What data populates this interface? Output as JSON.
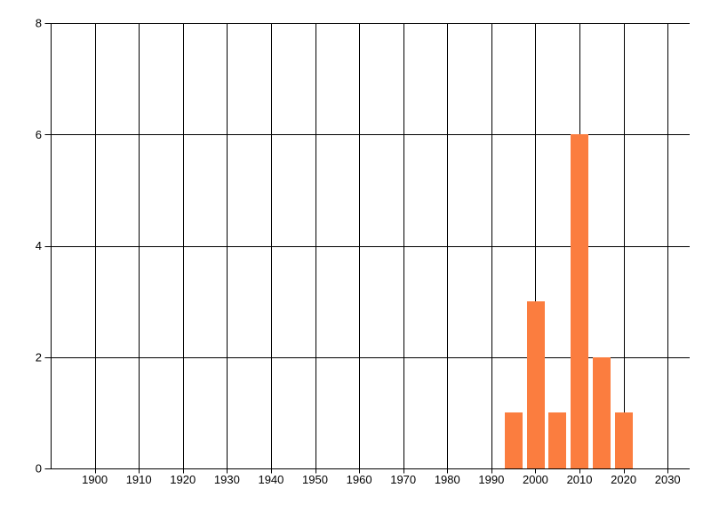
{
  "chart_data": {
    "type": "bar",
    "title": "",
    "xlabel": "",
    "ylabel": "",
    "x_centers": [
      1995,
      2000,
      2005,
      2010,
      2015,
      2020
    ],
    "values": [
      1,
      3,
      1,
      6,
      2,
      1
    ],
    "bar_width_years": 4,
    "xlim": [
      1890,
      2035
    ],
    "ylim": [
      0,
      8
    ],
    "x_ticks": [
      1900,
      1910,
      1920,
      1930,
      1940,
      1950,
      1960,
      1970,
      1980,
      1990,
      2000,
      2010,
      2020,
      2030
    ],
    "x_tick_labels": [
      "1900",
      "1910",
      "1920",
      "1930",
      "1940",
      "1950",
      "1960",
      "1970",
      "1980",
      "1990",
      "2000",
      "2010",
      "2020",
      "2030"
    ],
    "y_ticks": [
      0,
      2,
      4,
      6,
      8
    ],
    "y_tick_labels": [
      "0",
      "2",
      "4",
      "6",
      "8"
    ],
    "grid": "on",
    "legend": "none",
    "colors": {
      "bar": "#fb7d3f",
      "grid": "#000000",
      "text": "#000000",
      "background": "#ffffff"
    }
  }
}
